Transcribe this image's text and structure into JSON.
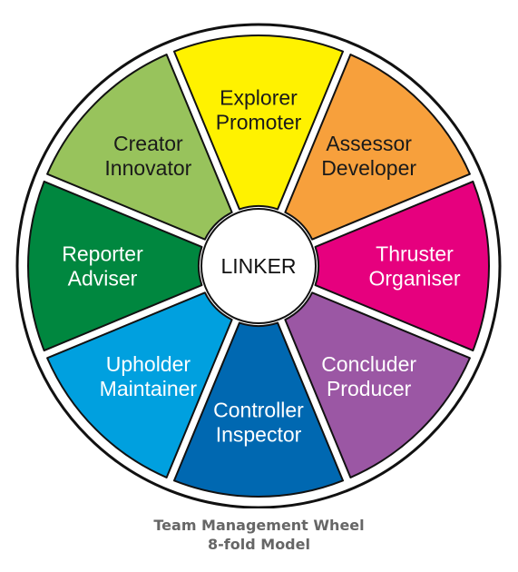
{
  "hub": {
    "label": "LINKER",
    "color": "#ffffff",
    "text_color": "#111111"
  },
  "segments": [
    {
      "lines": [
        "Explorer",
        "Promoter"
      ],
      "color": "#fff200",
      "text_color": "#1a1a1a"
    },
    {
      "lines": [
        "Assessor",
        "Developer"
      ],
      "color": "#f7a03c",
      "text_color": "#1a1a1a"
    },
    {
      "lines": [
        "Thruster",
        "Organiser"
      ],
      "color": "#e6007e",
      "text_color": "#ffffff"
    },
    {
      "lines": [
        "Concluder",
        "Producer"
      ],
      "color": "#9b57a4",
      "text_color": "#ffffff"
    },
    {
      "lines": [
        "Controller",
        "Inspector"
      ],
      "color": "#0068b1",
      "text_color": "#ffffff"
    },
    {
      "lines": [
        "Upholder",
        "Maintainer"
      ],
      "color": "#00a0df",
      "text_color": "#ffffff"
    },
    {
      "lines": [
        "Reporter",
        "Adviser"
      ],
      "color": "#00873f",
      "text_color": "#ffffff"
    },
    {
      "lines": [
        "Creator",
        "Innovator"
      ],
      "color": "#98c35c",
      "text_color": "#1a1a1a"
    }
  ],
  "caption": {
    "line1": "Team Management Wheel",
    "line2": "8-fold Model",
    "color": "#666666"
  },
  "outline_color": "#111111"
}
